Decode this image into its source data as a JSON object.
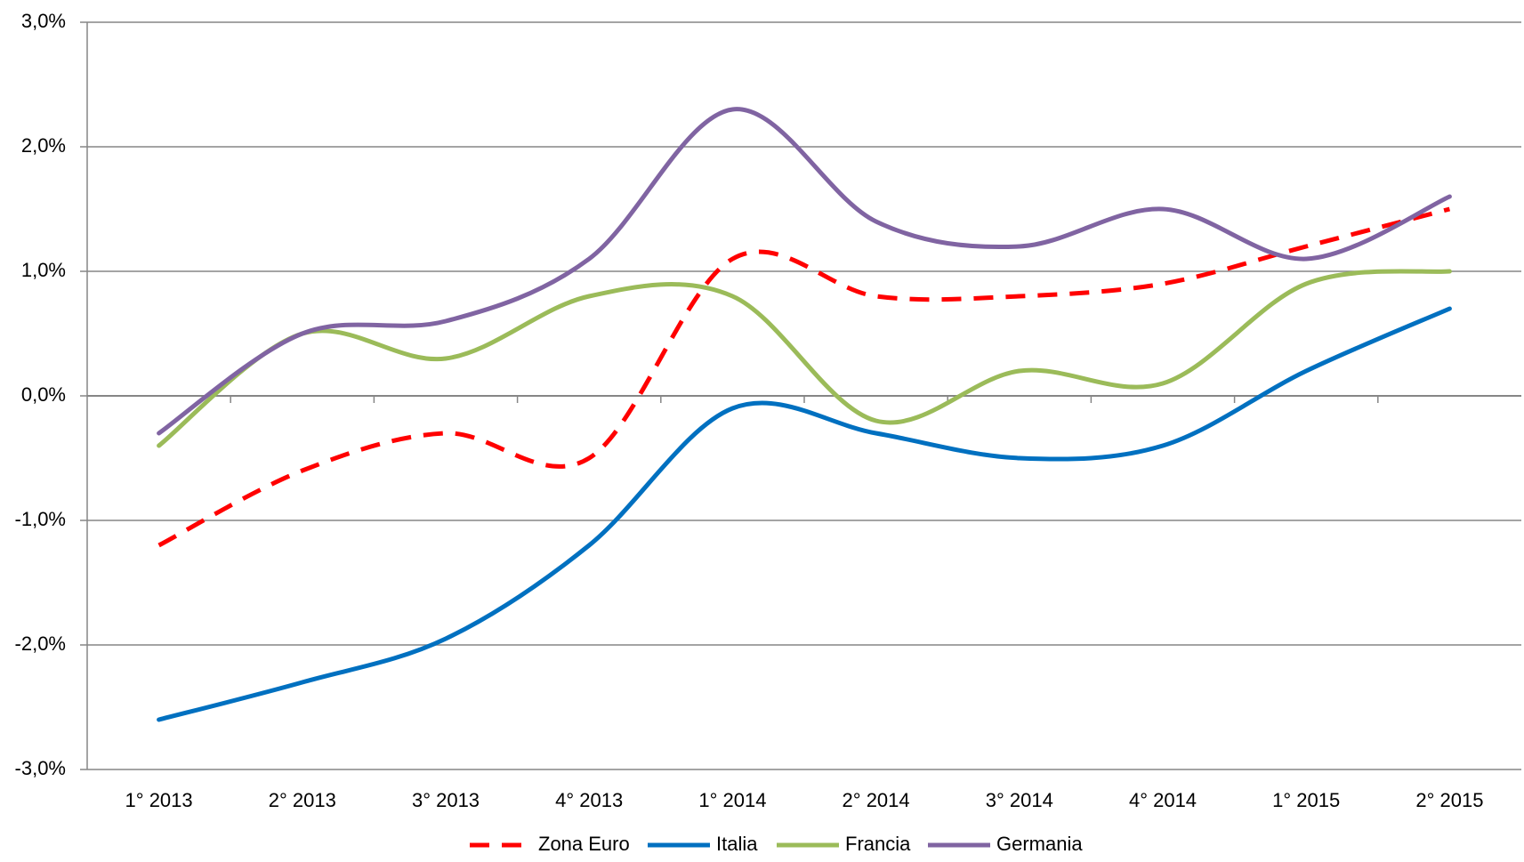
{
  "chart_data": {
    "type": "line",
    "categories": [
      "1° 2013",
      "2° 2013",
      "3° 2013",
      "4° 2013",
      "1° 2014",
      "2° 2014",
      "3° 2014",
      "4° 2014",
      "1° 2015",
      "2° 2015"
    ],
    "series": [
      {
        "name": "Zona Euro",
        "color": "#ff0000",
        "dashed": true,
        "values": [
          -1.2,
          -0.6,
          -0.3,
          -0.5,
          1.1,
          0.8,
          0.8,
          0.9,
          1.2,
          1.5
        ]
      },
      {
        "name": "Italia",
        "color": "#0070c0",
        "dashed": false,
        "values": [
          -2.6,
          -2.3,
          -1.95,
          -1.2,
          -0.1,
          -0.3,
          -0.5,
          -0.4,
          0.2,
          0.7
        ]
      },
      {
        "name": "Francia",
        "color": "#9bbb59",
        "dashed": false,
        "values": [
          -0.4,
          0.5,
          0.3,
          0.8,
          0.8,
          -0.2,
          0.2,
          0.1,
          0.9,
          1.0
        ]
      },
      {
        "name": "Germania",
        "color": "#8064a2",
        "dashed": false,
        "values": [
          -0.3,
          0.5,
          0.6,
          1.1,
          2.3,
          1.4,
          1.2,
          1.5,
          1.1,
          1.6
        ]
      }
    ],
    "ylim": [
      -3,
      3
    ],
    "yticks": [
      {
        "value": -3,
        "label": "-3,0%"
      },
      {
        "value": -2,
        "label": "-2,0%"
      },
      {
        "value": -1,
        "label": "-1,0%"
      },
      {
        "value": 0,
        "label": "0,0%"
      },
      {
        "value": 1,
        "label": "1,0%"
      },
      {
        "value": 2,
        "label": "2,0%"
      },
      {
        "value": 3,
        "label": "3,0%"
      }
    ],
    "grid": true,
    "legend": "bottom"
  }
}
